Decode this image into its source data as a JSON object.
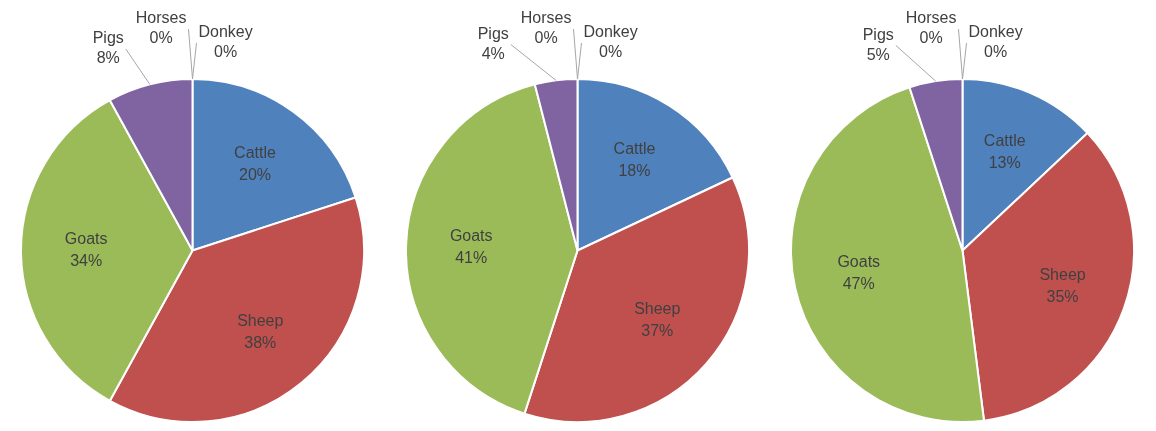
{
  "chart_data": [
    {
      "type": "pie",
      "categories": [
        "Cattle",
        "Sheep",
        "Goats",
        "Pigs",
        "Horses",
        "Donkey"
      ],
      "values": [
        20,
        38,
        34,
        8,
        0,
        0
      ],
      "value_labels": [
        "20%",
        "38%",
        "34%",
        "8%",
        "0%",
        "0%"
      ],
      "colors": [
        "#4f81bd",
        "#c0504d",
        "#9bbb59",
        "#8064a2",
        "#4bacc6",
        "#f79646"
      ]
    },
    {
      "type": "pie",
      "categories": [
        "Cattle",
        "Sheep",
        "Goats",
        "Pigs",
        "Horses",
        "Donkey"
      ],
      "values": [
        18,
        37,
        41,
        4,
        0,
        0
      ],
      "value_labels": [
        "18%",
        "37%",
        "41%",
        "4%",
        "0%",
        "0%"
      ],
      "colors": [
        "#4f81bd",
        "#c0504d",
        "#9bbb59",
        "#8064a2",
        "#4bacc6",
        "#f79646"
      ]
    },
    {
      "type": "pie",
      "categories": [
        "Cattle",
        "Sheep",
        "Goats",
        "Pigs",
        "Horses",
        "Donkey"
      ],
      "values": [
        13,
        35,
        47,
        5,
        0,
        0
      ],
      "value_labels": [
        "13%",
        "35%",
        "47%",
        "5%",
        "0%",
        "0%"
      ],
      "colors": [
        "#4f81bd",
        "#c0504d",
        "#9bbb59",
        "#8064a2",
        "#4bacc6",
        "#f79646"
      ]
    }
  ]
}
